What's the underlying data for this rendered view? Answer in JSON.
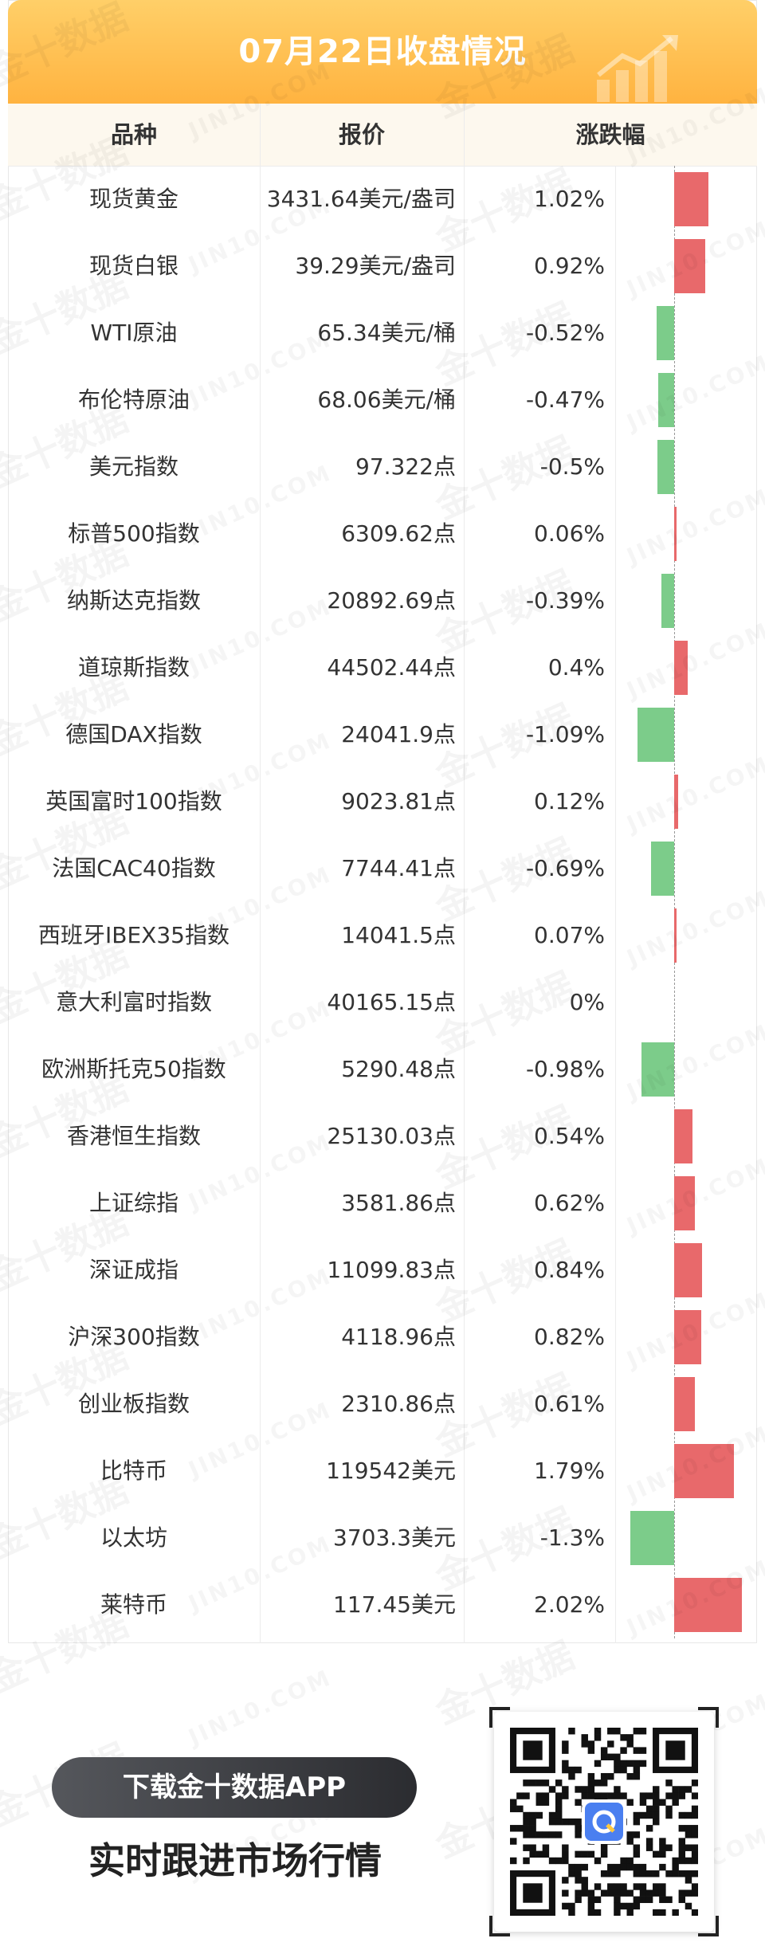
{
  "title": "07月22日收盘情况",
  "headers": {
    "name": "品种",
    "price": "报价",
    "change": "涨跌幅"
  },
  "rows": [
    {
      "name": "现货黄金",
      "price": "3431.64美元/盎司",
      "change": "1.02%",
      "pct": 1.02
    },
    {
      "name": "现货白银",
      "price": "39.29美元/盎司",
      "change": "0.92%",
      "pct": 0.92
    },
    {
      "name": "WTI原油",
      "price": "65.34美元/桶",
      "change": "-0.52%",
      "pct": -0.52
    },
    {
      "name": "布伦特原油",
      "price": "68.06美元/桶",
      "change": "-0.47%",
      "pct": -0.47
    },
    {
      "name": "美元指数",
      "price": "97.322点",
      "change": "-0.5%",
      "pct": -0.5
    },
    {
      "name": "标普500指数",
      "price": "6309.62点",
      "change": "0.06%",
      "pct": 0.06
    },
    {
      "name": "纳斯达克指数",
      "price": "20892.69点",
      "change": "-0.39%",
      "pct": -0.39
    },
    {
      "name": "道琼斯指数",
      "price": "44502.44点",
      "change": "0.4%",
      "pct": 0.4
    },
    {
      "name": "德国DAX指数",
      "price": "24041.9点",
      "change": "-1.09%",
      "pct": -1.09
    },
    {
      "name": "英国富时100指数",
      "price": "9023.81点",
      "change": "0.12%",
      "pct": 0.12
    },
    {
      "name": "法国CAC40指数",
      "price": "7744.41点",
      "change": "-0.69%",
      "pct": -0.69
    },
    {
      "name": "西班牙IBEX35指数",
      "price": "14041.5点",
      "change": "0.07%",
      "pct": 0.07
    },
    {
      "name": "意大利富时指数",
      "price": "40165.15点",
      "change": "0%",
      "pct": 0
    },
    {
      "name": "欧洲斯托克50指数",
      "price": "5290.48点",
      "change": "-0.98%",
      "pct": -0.98
    },
    {
      "name": "香港恒生指数",
      "price": "25130.03点",
      "change": "0.54%",
      "pct": 0.54
    },
    {
      "name": "上证综指",
      "price": "3581.86点",
      "change": "0.62%",
      "pct": 0.62
    },
    {
      "name": "深证成指",
      "price": "11099.83点",
      "change": "0.84%",
      "pct": 0.84
    },
    {
      "name": "沪深300指数",
      "price": "4118.96点",
      "change": "0.82%",
      "pct": 0.82
    },
    {
      "name": "创业板指数",
      "price": "2310.86点",
      "change": "0.61%",
      "pct": 0.61
    },
    {
      "name": "比特币",
      "price": "119542美元",
      "change": "1.79%",
      "pct": 1.79
    },
    {
      "name": "以太坊",
      "price": "3703.3美元",
      "change": "-1.3%",
      "pct": -1.3
    },
    {
      "name": "莱特币",
      "price": "117.45美元",
      "change": "2.02%",
      "pct": 2.02
    }
  ],
  "colors": {
    "up": "#e8696b",
    "down": "#7ccc8a",
    "banner": "#ffb340",
    "header_bg": "#fdf8ee"
  },
  "watermark": {
    "brand": "金十数据",
    "domain": "JIN10.COM"
  },
  "cta": {
    "button": "下载金十数据APP",
    "subtitle": "实时跟进市场行情"
  }
}
